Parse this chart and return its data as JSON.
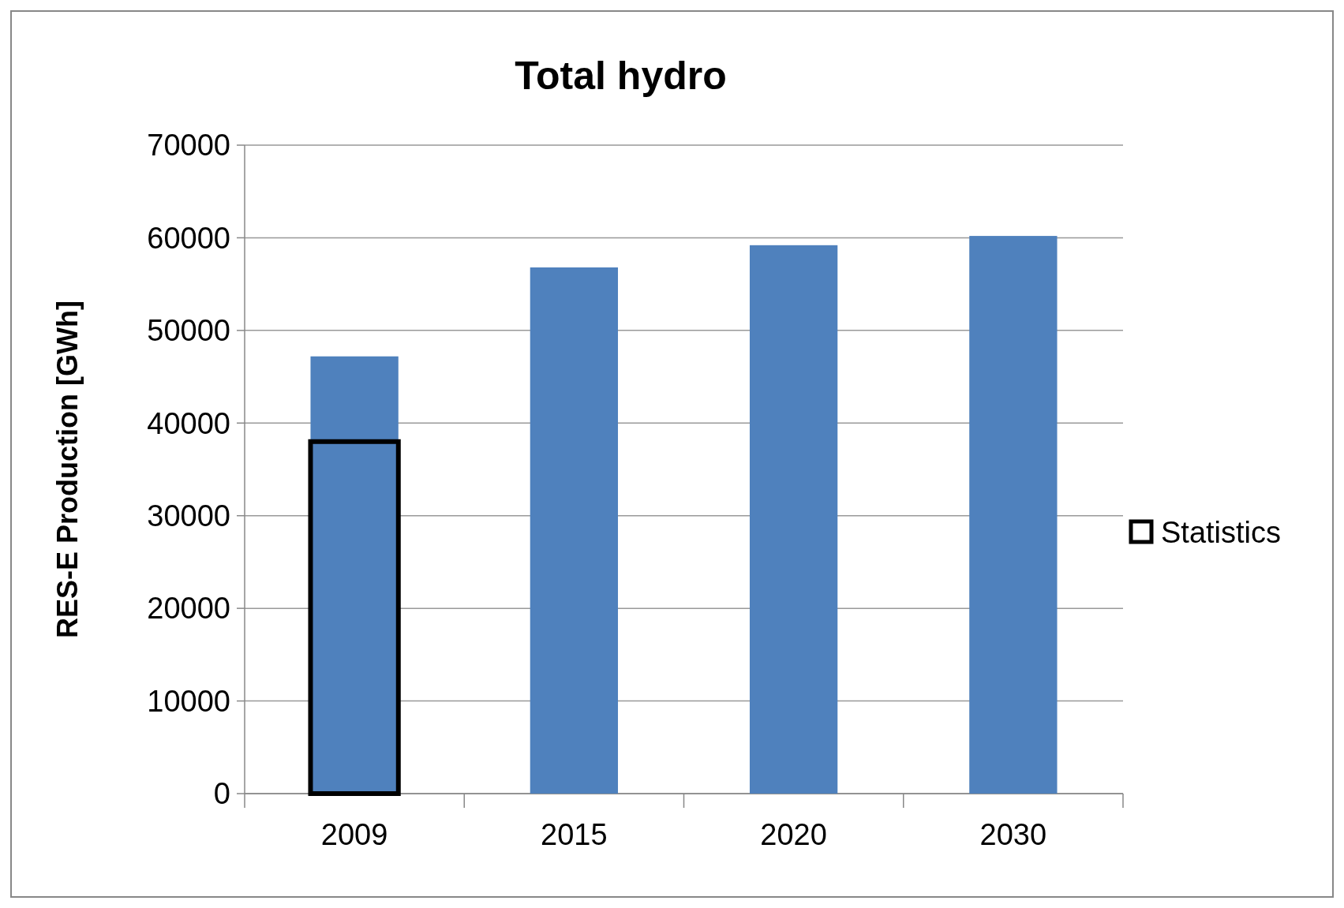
{
  "chart_data": {
    "type": "bar",
    "title": "Total hydro",
    "ylabel": "RES-E Production [GWh]",
    "categories": [
      "2009",
      "2015",
      "2020",
      "2030"
    ],
    "series": [
      {
        "color": "#4f81bd",
        "values": [
          47200,
          56800,
          59200,
          60200
        ]
      },
      {
        "name": "Statistics",
        "color": "#000000",
        "values": [
          38000,
          null,
          null,
          null
        ]
      }
    ],
    "ylim": [
      0,
      70000
    ],
    "yticks": [
      0,
      10000,
      20000,
      30000,
      40000,
      50000,
      60000,
      70000
    ],
    "grid": "y",
    "legend": "right"
  }
}
